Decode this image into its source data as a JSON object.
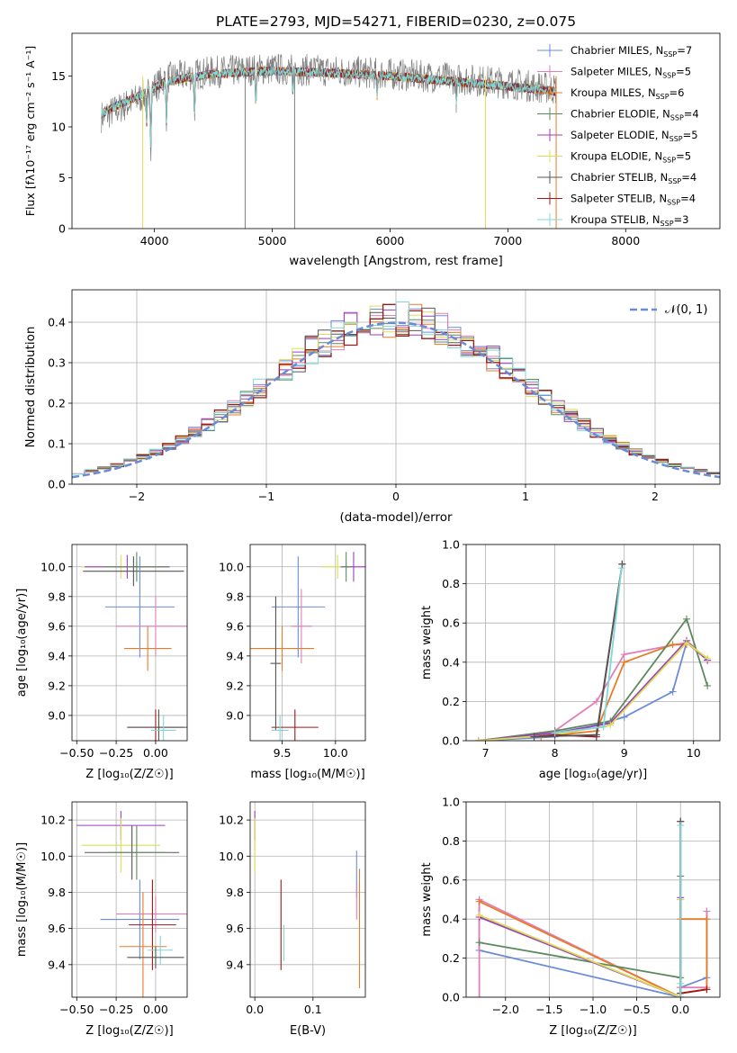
{
  "figure": {
    "title": "PLATE=2793, MJD=54271, FIBERID=0230, z=0.075"
  },
  "chart_data": [
    {
      "id": "spectrum",
      "type": "line",
      "xlabel": "wavelength [Angstrom, rest frame]",
      "ylabel": "Flux [fλ10⁻¹⁷ erg cm⁻² s⁻¹ A⁻¹]",
      "xlim": [
        3300,
        8800
      ],
      "ylim": [
        0,
        19.2
      ],
      "xticks": [
        4000,
        5000,
        6000,
        7000,
        8000
      ],
      "yticks": [
        0,
        5,
        10,
        15
      ],
      "grid": false,
      "legend_position": "top-right",
      "wl_range": [
        3550,
        7410
      ],
      "models_continuum": [
        [
          3550,
          11.3
        ],
        [
          3700,
          12.2
        ],
        [
          3900,
          13.2
        ],
        [
          4100,
          14.5
        ],
        [
          4500,
          15.2
        ],
        [
          5000,
          15.5
        ],
        [
          5500,
          15.3
        ],
        [
          6000,
          15.0
        ],
        [
          6500,
          14.5
        ],
        [
          7000,
          14.0
        ],
        [
          7410,
          13.5
        ]
      ],
      "data_continuum": [
        [
          3550,
          11.0
        ],
        [
          3700,
          11.8
        ],
        [
          3900,
          13.0
        ],
        [
          4100,
          14.8
        ],
        [
          4500,
          15.4
        ],
        [
          5000,
          15.7
        ],
        [
          5500,
          15.5
        ],
        [
          6000,
          15.2
        ],
        [
          6500,
          14.8
        ],
        [
          7000,
          14.3
        ],
        [
          7410,
          13.7
        ]
      ],
      "legend": [
        {
          "name": "Chabrier MILES, N_SSP=7",
          "color": "#6b8bd9"
        },
        {
          "name": "Salpeter MILES, N_SSP=5",
          "color": "#e07fb8"
        },
        {
          "name": "Kroupa MILES, N_SSP=6",
          "color": "#e87b28"
        },
        {
          "name": "Chabrier ELODIE, N_SSP=4",
          "color": "#5d8a5d"
        },
        {
          "name": "Salpeter ELODIE, N_SSP=5",
          "color": "#9b3fbf"
        },
        {
          "name": "Kroupa ELODIE, N_SSP=5",
          "color": "#dede55"
        },
        {
          "name": "Chabrier STELIB, N_SSP=4",
          "color": "#555555"
        },
        {
          "name": "Salpeter STELIB, N_SSP=4",
          "color": "#a01818"
        },
        {
          "name": "Kroupa STELIB, N_SSP=3",
          "color": "#7fd8d8"
        }
      ]
    },
    {
      "id": "residuals",
      "type": "line",
      "xlabel": "(data-model)/error",
      "ylabel": "Normed distribution",
      "xlim": [
        -2.5,
        2.5
      ],
      "ylim": [
        0,
        0.48
      ],
      "xticks": [
        -2,
        -1,
        0,
        1,
        2
      ],
      "yticks": [
        0.0,
        0.1,
        0.2,
        0.3,
        0.4
      ],
      "grid": true,
      "legend": "𝒩(0, 1)",
      "legend_position": "top-right",
      "gaussian": {
        "mean": 0,
        "sigma": 1,
        "color": "#6b8bd9",
        "style": "dashed"
      }
    },
    {
      "id": "age_vs_Z",
      "type": "scatter",
      "xlabel": "Z [log₁₀(Z/Z☉)]",
      "ylabel": "age  [log₁₀(age/yr)]",
      "xlim": [
        -0.53,
        0.2
      ],
      "ylim": [
        8.83,
        10.15
      ],
      "xticks": [
        -0.5,
        -0.25,
        0.0
      ],
      "xticklabels": [
        "−0.50",
        "−0.25",
        "0.00"
      ],
      "yticks": [
        9.0,
        9.2,
        9.4,
        9.6,
        9.8,
        10.0
      ],
      "grid": true,
      "points": [
        {
          "x": -0.22,
          "xerr": 0.25,
          "y": 10.0,
          "yerr": 0.08,
          "color": "#dede55"
        },
        {
          "x": -0.18,
          "xerr": 0.27,
          "y": 10.0,
          "yerr": 0.08,
          "color": "#9b3fbf"
        },
        {
          "x": -0.14,
          "xerr": 0.32,
          "y": 9.97,
          "yerr": 0.1,
          "color": "#555555"
        },
        {
          "x": -0.12,
          "xerr": 0.2,
          "y": 10.0,
          "yerr": 0.1,
          "color": "#5d8a5d"
        },
        {
          "x": -0.1,
          "xerr": 0.22,
          "y": 9.73,
          "yerr": 0.34,
          "color": "#6b8bd9"
        },
        {
          "x": 0.0,
          "xerr": 0.25,
          "y": 9.6,
          "yerr": 0.2,
          "color": "#e07fb8"
        },
        {
          "x": -0.05,
          "xerr": 0.15,
          "y": 9.45,
          "yerr": 0.15,
          "color": "#e87b28"
        },
        {
          "x": 0.0,
          "xerr": 0.18,
          "y": 8.92,
          "yerr": 0.12,
          "color": "#a01818"
        },
        {
          "x": 0.02,
          "xerr": 0.2,
          "y": 8.92,
          "yerr": 0.12,
          "color": "#555555"
        },
        {
          "x": 0.05,
          "xerr": 0.08,
          "y": 8.9,
          "yerr": 0.1,
          "color": "#7fd8d8"
        }
      ]
    },
    {
      "id": "age_vs_mass",
      "type": "scatter",
      "xlabel": "mass [log₁₀(M/M☉)]",
      "xlim": [
        9.2,
        10.28
      ],
      "ylim": [
        8.83,
        10.15
      ],
      "xticks": [
        9.5,
        10.0
      ],
      "xticklabels": [
        "9.5",
        "10.0"
      ],
      "yticks": [
        9.0,
        9.2,
        9.4,
        9.6,
        9.8,
        10.0
      ],
      "grid": true,
      "points": [
        {
          "x": 10.02,
          "xerr": 0.15,
          "y": 10.0,
          "yerr": 0.08,
          "color": "#dede55"
        },
        {
          "x": 10.17,
          "xerr": 0.12,
          "y": 10.0,
          "yerr": 0.1,
          "color": "#9b3fbf"
        },
        {
          "x": 10.1,
          "xerr": 0.05,
          "y": 10.0,
          "yerr": 0.1,
          "color": "#5d8a5d"
        },
        {
          "x": 9.65,
          "xerr": 0.25,
          "y": 9.73,
          "yerr": 0.34,
          "color": "#6b8bd9"
        },
        {
          "x": 9.68,
          "xerr": 0.1,
          "y": 9.6,
          "yerr": 0.25,
          "color": "#e07fb8"
        },
        {
          "x": 9.5,
          "xerr": 0.3,
          "y": 9.45,
          "yerr": 0.15,
          "color": "#e87b28"
        },
        {
          "x": 9.62,
          "xerr": 0.22,
          "y": 8.92,
          "yerr": 0.12,
          "color": "#a01818"
        },
        {
          "x": 9.44,
          "xerr": 0.05,
          "y": 9.35,
          "yerr": 0.45,
          "color": "#555555"
        },
        {
          "x": 9.48,
          "xerr": 0.08,
          "y": 8.9,
          "yerr": 0.1,
          "color": "#7fd8d8"
        }
      ]
    },
    {
      "id": "mass_weight_vs_age",
      "type": "line",
      "xlabel": "age  [log₁₀(age/yr)]",
      "ylabel": "mass weight",
      "xlim": [
        6.72,
        10.38
      ],
      "ylim": [
        0,
        1.0
      ],
      "xticks": [
        7,
        8,
        9,
        10
      ],
      "yticks": [
        0.0,
        0.2,
        0.4,
        0.6,
        0.8,
        1.0
      ],
      "grid": true,
      "series": [
        {
          "color": "#6b8bd9",
          "x": [
            6.9,
            8.0,
            9.0,
            9.7,
            9.9,
            10.2
          ],
          "y": [
            0.0,
            0.02,
            0.12,
            0.25,
            0.5,
            0.41
          ]
        },
        {
          "color": "#e07fb8",
          "x": [
            6.9,
            8.0,
            8.6,
            9.0,
            9.9,
            10.2
          ],
          "y": [
            0.0,
            0.05,
            0.2,
            0.44,
            0.5,
            0.41
          ]
        },
        {
          "color": "#e87b28",
          "x": [
            7.8,
            8.6,
            9.0,
            9.7,
            9.9
          ],
          "y": [
            0.02,
            0.05,
            0.4,
            0.49,
            0.49
          ]
        },
        {
          "color": "#5d8a5d",
          "x": [
            6.9,
            8.0,
            8.8,
            9.9,
            10.2
          ],
          "y": [
            0.0,
            0.05,
            0.1,
            0.62,
            0.28
          ]
        },
        {
          "color": "#9b3fbf",
          "x": [
            6.9,
            8.0,
            8.8,
            9.9,
            10.2
          ],
          "y": [
            0.0,
            0.04,
            0.09,
            0.51,
            0.41
          ]
        },
        {
          "color": "#dede55",
          "x": [
            6.9,
            8.0,
            8.8,
            9.9,
            10.2
          ],
          "y": [
            0.0,
            0.03,
            0.08,
            0.5,
            0.42
          ]
        },
        {
          "color": "#a01818",
          "x": [
            7.7,
            8.0,
            8.6,
            8.97
          ],
          "y": [
            0.02,
            0.03,
            0.02,
            0.9
          ]
        },
        {
          "color": "#555555",
          "x": [
            7.7,
            8.6,
            8.97
          ],
          "y": [
            0.02,
            0.03,
            0.9
          ]
        },
        {
          "color": "#7fd8d8",
          "x": [
            8.0,
            8.7,
            8.96
          ],
          "y": [
            0.04,
            0.07,
            0.88
          ]
        }
      ]
    },
    {
      "id": "mass_vs_Z",
      "type": "scatter",
      "xlabel": "Z [log₁₀(Z/Z☉)]",
      "ylabel": "mass [log₁₀(M/M☉)]",
      "xlim": [
        -0.53,
        0.2
      ],
      "ylim": [
        9.22,
        10.3
      ],
      "xticks": [
        -0.5,
        -0.25,
        0.0
      ],
      "xticklabels": [
        "−0.50",
        "−0.25",
        "0.00"
      ],
      "yticks": [
        9.4,
        9.6,
        9.8,
        10.0,
        10.2
      ],
      "grid": true,
      "points": [
        {
          "x": -0.22,
          "xerr": 0.28,
          "y": 10.17,
          "yerr": 0.08,
          "color": "#9b3fbf"
        },
        {
          "x": -0.22,
          "xerr": 0.25,
          "y": 10.06,
          "yerr": 0.15,
          "color": "#dede55"
        },
        {
          "x": -0.15,
          "xerr": 0.3,
          "y": 10.02,
          "yerr": 0.15,
          "color": "#555555"
        },
        {
          "x": -0.12,
          "xerr": 0.18,
          "y": 10.02,
          "yerr": 0.15,
          "color": "#5d8a5d"
        },
        {
          "x": -0.1,
          "xerr": 0.25,
          "y": 9.65,
          "yerr": 0.22,
          "color": "#6b8bd9"
        },
        {
          "x": 0.0,
          "xerr": 0.25,
          "y": 9.68,
          "yerr": 0.1,
          "color": "#e07fb8"
        },
        {
          "x": -0.02,
          "xerr": 0.15,
          "y": 9.62,
          "yerr": 0.25,
          "color": "#a01818"
        },
        {
          "x": -0.08,
          "xerr": 0.15,
          "y": 9.5,
          "yerr": 0.3,
          "color": "#e87b28"
        },
        {
          "x": 0.03,
          "xerr": 0.08,
          "y": 9.48,
          "yerr": 0.08,
          "color": "#7fd8d8"
        },
        {
          "x": 0.0,
          "xerr": 0.18,
          "y": 9.44,
          "yerr": 0.06,
          "color": "#555555"
        }
      ]
    },
    {
      "id": "mass_vs_ebv",
      "type": "scatter",
      "xlabel": "E(B-V)",
      "xlim": [
        -0.008,
        0.19
      ],
      "ylim": [
        9.22,
        10.3
      ],
      "xticks": [
        0.0,
        0.1
      ],
      "xticklabels": [
        "0.0",
        "0.1"
      ],
      "yticks": [
        9.4,
        9.6,
        9.8,
        10.0,
        10.2
      ],
      "grid": true,
      "points": [
        {
          "x": 0.0,
          "y": 10.17,
          "yerr": 0.08,
          "color": "#9b3fbf"
        },
        {
          "x": 0.0,
          "y": 10.06,
          "yerr": 0.15,
          "color": "#dede55"
        },
        {
          "x": 0.045,
          "y": 9.62,
          "yerr": 0.25,
          "color": "#a01818"
        },
        {
          "x": 0.05,
          "y": 9.52,
          "yerr": 0.1,
          "color": "#7fd8d8"
        },
        {
          "x": 0.175,
          "y": 9.9,
          "yerr": 0.13,
          "color": "#6b8bd9"
        },
        {
          "x": 0.175,
          "y": 9.75,
          "yerr": 0.1,
          "color": "#e07fb8"
        },
        {
          "x": 0.18,
          "y": 9.6,
          "yerr": 0.33,
          "color": "#e87b28"
        }
      ]
    },
    {
      "id": "mass_weight_vs_Z",
      "type": "line",
      "xlabel": "Z [log₁₀(Z/Z☉)]",
      "ylabel": "mass weight",
      "xlim": [
        -2.45,
        0.45
      ],
      "ylim": [
        0,
        1.0
      ],
      "xticks": [
        -2.0,
        -1.5,
        -1.0,
        -0.5,
        0.0
      ],
      "xticklabels": [
        "−2.0",
        "−1.5",
        "−1.0",
        "−0.5",
        "0.0"
      ],
      "yticks": [
        0.0,
        0.2,
        0.4,
        0.6,
        0.8,
        1.0
      ],
      "grid": true,
      "series": [
        {
          "color": "#6b8bd9",
          "x": [
            -2.3,
            -2.3,
            0.0,
            0.0,
            0.3,
            0.3
          ],
          "y": [
            0.5,
            0.24,
            0.0,
            0.05,
            0.1,
            0.44
          ]
        },
        {
          "color": "#e07fb8",
          "x": [
            -2.3,
            -2.3,
            0.0,
            0.0,
            0.3,
            0.3
          ],
          "y": [
            0.0,
            0.5,
            0.0,
            0.05,
            0.05,
            0.44
          ]
        },
        {
          "color": "#e87b28",
          "x": [
            -2.3,
            0.0,
            0.0,
            0.3,
            0.3,
            0.0
          ],
          "y": [
            0.49,
            0.0,
            0.02,
            0.04,
            0.4,
            0.4
          ]
        },
        {
          "color": "#5d8a5d",
          "x": [
            -2.3,
            0.0,
            0.0,
            0.0
          ],
          "y": [
            0.28,
            0.1,
            0.62,
            0.5
          ]
        },
        {
          "color": "#9b3fbf",
          "x": [
            -2.3,
            0.0,
            0.0
          ],
          "y": [
            0.41,
            0.0,
            0.51
          ]
        },
        {
          "color": "#dede55",
          "x": [
            -2.3,
            0.0,
            0.0
          ],
          "y": [
            0.42,
            0.0,
            0.5
          ]
        },
        {
          "color": "#a01818",
          "x": [
            0.0,
            0.0,
            0.3
          ],
          "y": [
            0.9,
            0.02,
            0.04
          ]
        },
        {
          "color": "#555555",
          "x": [
            0.0,
            0.0
          ],
          "y": [
            0.9,
            0.02
          ]
        },
        {
          "color": "#7fd8d8",
          "x": [
            0.0,
            0.0,
            0.0
          ],
          "y": [
            0.88,
            0.0,
            0.07
          ]
        }
      ]
    }
  ]
}
